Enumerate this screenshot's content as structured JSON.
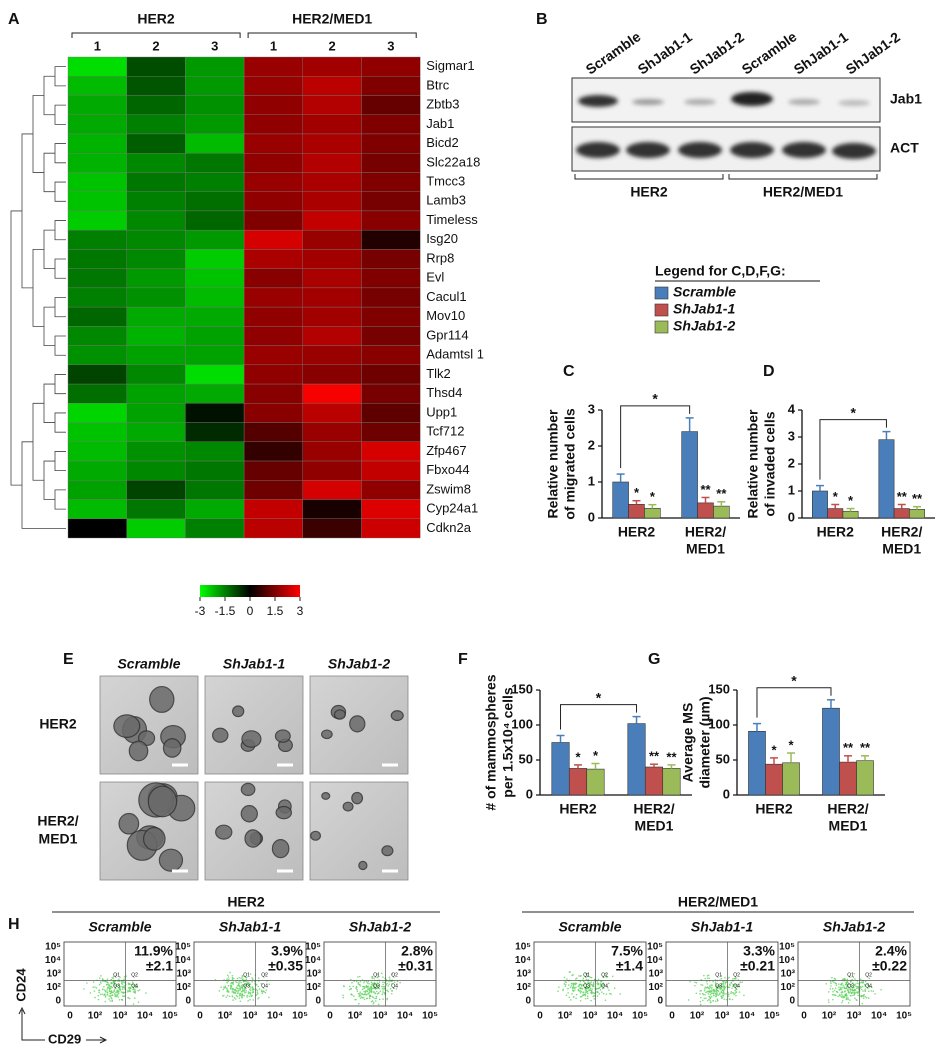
{
  "panel_labels": [
    "A",
    "B",
    "C",
    "D",
    "E",
    "F",
    "G",
    "H"
  ],
  "chart_data": [
    {
      "type": "heatmap",
      "column_groups": [
        "HER2",
        "HER2/MED1"
      ],
      "columns": [
        "1",
        "2",
        "3",
        "1",
        "2",
        "3"
      ],
      "rows": [
        "Sigmar1",
        "Btrc",
        "Zbtb3",
        "Jab1",
        "Bicd2",
        "Slc22a18",
        "Tmcc3",
        "Lamb3",
        "Timeless",
        "Isg20",
        "Rrp8",
        "Evl",
        "Cacul1",
        "Mov10",
        "Gpr114",
        "Adamtsl 1",
        "Tlk2",
        "Thsd4",
        "Upp1",
        "Tcf712",
        "Zfp467",
        "Fbxo44",
        "Zswim8",
        "Cyp24a1",
        "Cdkn2a"
      ],
      "values": [
        [
          -2.6,
          -0.9,
          -1.8,
          1.8,
          1.9,
          1.7
        ],
        [
          -2.2,
          -1.0,
          -1.8,
          1.8,
          2.2,
          1.5
        ],
        [
          -2.0,
          -1.2,
          -1.7,
          1.7,
          2.1,
          1.2
        ],
        [
          -2.0,
          -1.5,
          -1.8,
          1.7,
          1.9,
          1.5
        ],
        [
          -2.1,
          -1.1,
          -2.2,
          1.8,
          2.0,
          1.5
        ],
        [
          -2.1,
          -1.6,
          -1.4,
          1.7,
          2.1,
          1.4
        ],
        [
          -2.3,
          -1.4,
          -1.5,
          1.8,
          2.0,
          1.5
        ],
        [
          -2.3,
          -1.5,
          -1.3,
          1.7,
          2.0,
          1.4
        ],
        [
          -2.4,
          -1.6,
          -1.2,
          1.5,
          2.3,
          1.6
        ],
        [
          -1.5,
          -1.6,
          -1.8,
          2.5,
          1.8,
          0.4
        ],
        [
          -1.4,
          -1.6,
          -2.4,
          2.0,
          1.9,
          1.4
        ],
        [
          -1.4,
          -1.8,
          -2.3,
          1.6,
          2.0,
          1.5
        ],
        [
          -1.5,
          -1.7,
          -2.2,
          1.8,
          1.9,
          1.4
        ],
        [
          -1.2,
          -2.0,
          -2.0,
          1.7,
          1.9,
          1.5
        ],
        [
          -1.6,
          -2.1,
          -1.9,
          1.7,
          2.1,
          1.4
        ],
        [
          -1.7,
          -1.9,
          -1.9,
          1.8,
          1.8,
          1.6
        ],
        [
          -0.8,
          -1.6,
          -2.6,
          1.7,
          1.6,
          1.3
        ],
        [
          -1.3,
          -1.9,
          -2.0,
          1.6,
          2.9,
          1.4
        ],
        [
          -2.5,
          -1.9,
          -0.2,
          1.6,
          2.2,
          1.1
        ],
        [
          -2.3,
          -2.0,
          -0.5,
          1.0,
          1.8,
          1.3
        ],
        [
          -2.2,
          -1.7,
          -1.6,
          0.6,
          1.8,
          2.5
        ],
        [
          -2.0,
          -1.6,
          -1.4,
          1.2,
          1.7,
          2.3
        ],
        [
          -1.9,
          -0.8,
          -1.4,
          1.3,
          2.5,
          1.7
        ],
        [
          -2.2,
          -1.4,
          -2.0,
          2.3,
          0.3,
          2.6
        ],
        [
          0.0,
          -2.4,
          -1.5,
          2.2,
          0.7,
          2.4
        ]
      ],
      "clim": [
        -3,
        3
      ],
      "colorbar_ticks": [
        -3,
        -1.5,
        0,
        1.5,
        3
      ]
    },
    {
      "type": "bar",
      "y_label": [
        "Relative number",
        "of migrated cells"
      ],
      "categories": [
        [
          "HER2"
        ],
        [
          "HER2/",
          "MED1"
        ]
      ],
      "ylim": [
        0,
        3
      ],
      "yticks": [
        0,
        1,
        2,
        3
      ],
      "comparison_label": "*",
      "series": [
        {
          "name": "Scramble",
          "color": "#4a7ebb",
          "values": [
            1.0,
            2.4
          ],
          "errors": [
            0.22,
            0.38
          ]
        },
        {
          "name": "ShJab1-1",
          "color": "#c0504d",
          "values": [
            0.38,
            0.42
          ],
          "errors": [
            0.1,
            0.15
          ],
          "significance": [
            "*",
            "**"
          ]
        },
        {
          "name": "ShJab1-2",
          "color": "#9bbb59",
          "values": [
            0.27,
            0.33
          ],
          "errors": [
            0.1,
            0.12
          ],
          "significance": [
            "*",
            "**"
          ]
        }
      ]
    },
    {
      "type": "bar",
      "y_label": [
        "Relative number",
        "of invaded cells"
      ],
      "categories": [
        [
          "HER2"
        ],
        [
          "HER2/",
          "MED1"
        ]
      ],
      "ylim": [
        0,
        4
      ],
      "yticks": [
        0,
        1,
        2,
        3,
        4
      ],
      "comparison_label": "*",
      "series": [
        {
          "color": "#4a7ebb",
          "values": [
            1.0,
            2.9
          ],
          "errors": [
            0.2,
            0.3
          ]
        },
        {
          "color": "#c0504d",
          "values": [
            0.35,
            0.35
          ],
          "errors": [
            0.15,
            0.15
          ],
          "significance": [
            "*",
            "**"
          ]
        },
        {
          "color": "#9bbb59",
          "values": [
            0.25,
            0.32
          ],
          "errors": [
            0.1,
            0.1
          ],
          "significance": [
            "*",
            "**"
          ]
        }
      ]
    },
    {
      "type": "bar",
      "y_label": [
        "# of mammospheres",
        "per 1.5x10⁴ cells"
      ],
      "categories": [
        [
          "HER2"
        ],
        [
          "HER2/",
          "MED1"
        ]
      ],
      "ylim": [
        0,
        150
      ],
      "yticks": [
        0,
        50,
        100,
        150
      ],
      "comparison_label": "*",
      "series": [
        {
          "color": "#4a7ebb",
          "values": [
            75,
            102
          ],
          "errors": [
            10,
            10
          ]
        },
        {
          "color": "#c0504d",
          "values": [
            38,
            40
          ],
          "errors": [
            5,
            4
          ],
          "significance": [
            "*",
            "**"
          ]
        },
        {
          "color": "#9bbb59",
          "values": [
            37,
            38
          ],
          "errors": [
            8,
            5
          ],
          "significance": [
            "*",
            "**"
          ]
        }
      ]
    },
    {
      "type": "bar",
      "y_label": [
        "Average MS",
        "diameter (µm)"
      ],
      "categories": [
        [
          "HER2"
        ],
        [
          "HER2/",
          "MED1"
        ]
      ],
      "ylim": [
        0,
        150
      ],
      "yticks": [
        0,
        50,
        100,
        150
      ],
      "comparison_label": "*",
      "series": [
        {
          "color": "#4a7ebb",
          "values": [
            91,
            124
          ],
          "errors": [
            11,
            12
          ]
        },
        {
          "color": "#c0504d",
          "values": [
            44,
            47
          ],
          "errors": [
            9,
            9
          ],
          "significance": [
            "*",
            "**"
          ]
        },
        {
          "color": "#9bbb59",
          "values": [
            46,
            49
          ],
          "errors": [
            14,
            7
          ],
          "significance": [
            "*",
            "**"
          ]
        }
      ]
    }
  ],
  "western_blot": {
    "lanes": [
      "Scramble",
      "ShJab1-1",
      "ShJab1-2",
      "Scramble",
      "ShJab1-1",
      "ShJab1-2"
    ],
    "bands": [
      "Jab1",
      "ACT"
    ],
    "groups": [
      "HER2",
      "HER2/MED1"
    ]
  },
  "legend_title": "Legend for C,D,F,G:",
  "mammosphere_images": {
    "columns": [
      "Scramble",
      "ShJab1-1",
      "ShJab1-2"
    ],
    "rows": [
      [
        "HER2"
      ],
      [
        "HER2/",
        "MED1"
      ]
    ]
  },
  "flow": {
    "groups": [
      {
        "title": "HER2",
        "plots": [
          {
            "title": "Scramble",
            "percent": "11.9%",
            "sd": "±2.1"
          },
          {
            "title": "ShJab1-1",
            "percent": "3.9%",
            "sd": "±0.35"
          },
          {
            "title": "ShJab1-2",
            "percent": "2.8%",
            "sd": "±0.31"
          }
        ]
      },
      {
        "title": "HER2/MED1",
        "plots": [
          {
            "title": "Scramble",
            "percent": "7.5%",
            "sd": "±1.4"
          },
          {
            "title": "ShJab1-1",
            "percent": "3.3%",
            "sd": "±0.21"
          },
          {
            "title": "ShJab1-2",
            "percent": "2.4%",
            "sd": "±0.22"
          }
        ]
      }
    ],
    "x_tick_labels": [
      "0",
      "10²",
      "10³",
      "10⁴",
      "10⁵"
    ],
    "y_tick_labels": [
      "10⁵",
      "10⁴",
      "10³",
      "10²",
      "0"
    ],
    "quadrant_labels": [
      "Q1",
      "Q2",
      "Q3",
      "Q4"
    ],
    "x_axis_label": "CD29",
    "y_axis_label": "CD24"
  }
}
